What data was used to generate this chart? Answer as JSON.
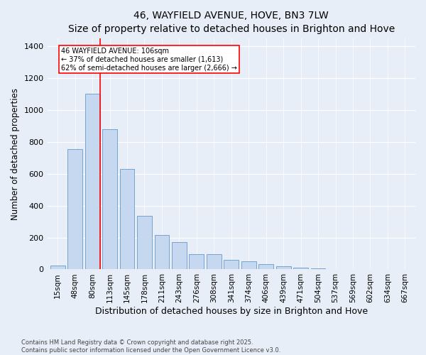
{
  "title": "46, WAYFIELD AVENUE, HOVE, BN3 7LW",
  "subtitle": "Size of property relative to detached houses in Brighton and Hove",
  "xlabel": "Distribution of detached houses by size in Brighton and Hove",
  "ylabel": "Number of detached properties",
  "categories": [
    "15sqm",
    "48sqm",
    "80sqm",
    "113sqm",
    "145sqm",
    "178sqm",
    "211sqm",
    "243sqm",
    "276sqm",
    "308sqm",
    "341sqm",
    "374sqm",
    "406sqm",
    "439sqm",
    "471sqm",
    "504sqm",
    "537sqm",
    "569sqm",
    "602sqm",
    "634sqm",
    "667sqm"
  ],
  "values": [
    25,
    755,
    1100,
    880,
    630,
    335,
    215,
    170,
    95,
    95,
    58,
    52,
    33,
    18,
    13,
    8,
    4,
    3,
    1,
    4,
    2
  ],
  "bar_color": "#c5d8f0",
  "bar_edge_color": "#6699cc",
  "vline_color": "red",
  "vline_x_index": 2,
  "annotation_title": "46 WAYFIELD AVENUE: 106sqm",
  "annotation_line1": "← 37% of detached houses are smaller (1,613)",
  "annotation_line2": "62% of semi-detached houses are larger (2,666) →",
  "ylim": [
    0,
    1450
  ],
  "yticks": [
    0,
    200,
    400,
    600,
    800,
    1000,
    1200,
    1400
  ],
  "bg_color": "#e8eef8",
  "footer_line1": "Contains HM Land Registry data © Crown copyright and database right 2025.",
  "footer_line2": "Contains public sector information licensed under the Open Government Licence v3.0."
}
